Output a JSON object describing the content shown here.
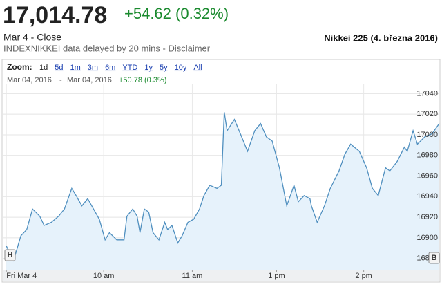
{
  "header": {
    "price": "17,014.78",
    "change": "+54.62 (0.32%)",
    "status": "Mar 4 - Close",
    "source": "INDEXNIKKEI data delayed by 20 mins - Disclaimer",
    "caption": "Nikkei 225 (4. března 2016)"
  },
  "toolbar": {
    "zoom_label": "Zoom:",
    "zoom_options": [
      "1d",
      "5d",
      "1m",
      "3m",
      "6m",
      "YTD",
      "1y",
      "5y",
      "10y",
      "All"
    ],
    "range_from": "Mar 04, 2016",
    "range_sep": "-",
    "range_to": "Mar 04, 2016",
    "range_change": "+50.78 (0.3%)"
  },
  "flags": {
    "left": "H",
    "right": "B"
  },
  "chart_data": {
    "type": "line",
    "x": [
      0,
      5,
      10,
      14,
      18,
      23,
      26,
      31,
      36,
      40,
      45,
      48,
      52,
      56,
      60,
      64,
      68,
      71,
      76,
      81,
      83,
      87,
      90,
      92,
      95,
      98,
      101,
      105,
      109,
      111,
      114,
      118,
      121,
      125,
      129,
      133,
      136,
      140,
      145,
      148,
      150,
      152,
      157,
      162,
      166,
      171,
      175,
      179,
      183,
      188,
      193,
      198,
      201,
      205,
      209,
      210,
      214,
      219,
      223,
      229,
      233,
      237,
      243,
      248,
      252,
      256,
      261,
      264,
      269,
      274,
      276,
      280,
      283,
      288,
      293,
      298
    ],
    "values": [
      16892,
      16878,
      16902,
      16908,
      16928,
      16921,
      16912,
      16915,
      16921,
      16928,
      16948,
      16941,
      16931,
      16938,
      16928,
      16918,
      16898,
      16905,
      16898,
      16898,
      16921,
      16928,
      16921,
      16905,
      16928,
      16925,
      16905,
      16898,
      16915,
      16908,
      16912,
      16895,
      16902,
      16915,
      16918,
      16928,
      16941,
      16951,
      16948,
      16951,
      17022,
      17004,
      17015,
      16998,
      16984,
      17004,
      17011,
      16998,
      16994,
      16968,
      16931,
      16951,
      16935,
      16941,
      16938,
      16931,
      16915,
      16931,
      16948,
      16965,
      16981,
      16991,
      16984,
      16968,
      16948,
      16941,
      16968,
      16965,
      16974,
      16988,
      16984,
      17004,
      16991,
      16998,
      17001,
      17011
    ],
    "color": "#4f8fbf",
    "fill": "#e6f2fb",
    "reference_value": 16960,
    "reference_color": "#9b2b2b",
    "xlim": [
      -2,
      298
    ],
    "xticks": [
      {
        "value": 0,
        "label": "Fri Mar 4"
      },
      {
        "value": 67,
        "label": "10 am"
      },
      {
        "value": 128,
        "label": "11 am"
      },
      {
        "value": 186,
        "label": "1 pm"
      },
      {
        "value": 246,
        "label": "2 pm"
      }
    ],
    "ylim": [
      16869,
      17049
    ],
    "yticks": [
      16880,
      16900,
      16920,
      16940,
      16960,
      16980,
      17000,
      17020,
      17040
    ],
    "grid": true
  }
}
